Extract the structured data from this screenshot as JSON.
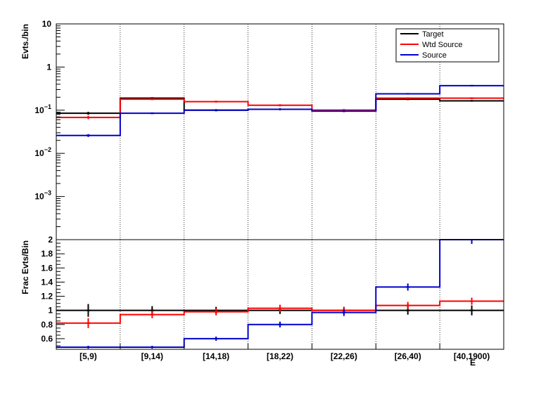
{
  "chart_data": [
    {
      "type": "step-histogram",
      "panel": "top",
      "ylabel": "Evts./bin",
      "yscale": "log",
      "ylim": [
        0.0001,
        10
      ],
      "yticks": [
        {
          "value": 10,
          "label": "10"
        },
        {
          "value": 1,
          "label": "1"
        },
        {
          "value": 0.1,
          "label": "10",
          "exp": "−1"
        },
        {
          "value": 0.01,
          "label": "10",
          "exp": "−2"
        },
        {
          "value": 0.001,
          "label": "10",
          "exp": "−3"
        }
      ],
      "categories": [
        "[5,9)",
        "[9,14)",
        "[14,18)",
        "[18,22)",
        "[22,26)",
        "[26,40)",
        "[40,1900)"
      ],
      "grid_x": true,
      "legend_position": "top-right",
      "series": [
        {
          "name": "Target",
          "color": "#000000",
          "values": [
            0.085,
            0.19,
            0.1,
            0.105,
            0.1,
            0.18,
            0.165
          ],
          "errors": [
            0.007,
            0.01,
            0.006,
            0.006,
            0.006,
            0.009,
            0.008
          ]
        },
        {
          "name": "Wtd Source",
          "color": "#ff0000",
          "values": [
            0.068,
            0.18,
            0.158,
            0.13,
            0.1,
            0.19,
            0.19
          ],
          "errors": [
            0.006,
            0.009,
            0.008,
            0.007,
            0.006,
            0.009,
            0.009
          ]
        },
        {
          "name": "Source",
          "color": "#0000cc",
          "values": [
            0.026,
            0.085,
            0.1,
            0.105,
            0.095,
            0.24,
            0.37
          ],
          "errors": [
            0.002,
            0.004,
            0.005,
            0.005,
            0.005,
            0.01,
            0.015
          ]
        }
      ]
    },
    {
      "type": "step-histogram",
      "panel": "bottom",
      "ylabel": "Frac Evts/Bin",
      "xlabel": "E",
      "ylim": [
        0.45,
        2.0
      ],
      "yticks": [
        {
          "value": 0.6,
          "label": "0.6"
        },
        {
          "value": 0.8,
          "label": "0.8"
        },
        {
          "value": 1.0,
          "label": "1"
        },
        {
          "value": 1.2,
          "label": "1.2"
        },
        {
          "value": 1.4,
          "label": "1.4"
        },
        {
          "value": 1.6,
          "label": "1.6"
        },
        {
          "value": 1.8,
          "label": "1.8"
        },
        {
          "value": 2.0,
          "label": "2"
        }
      ],
      "categories": [
        "[5,9)",
        "[9,14)",
        "[14,18)",
        "[18,22)",
        "[22,26)",
        "[26,40)",
        "[40,1900)"
      ],
      "grid_x": true,
      "series": [
        {
          "name": "Target",
          "color": "#000000",
          "values": [
            1,
            1,
            1,
            1,
            1,
            1,
            1
          ],
          "errors": [
            0.09,
            0.06,
            0.05,
            0.05,
            0.05,
            0.06,
            0.07
          ]
        },
        {
          "name": "Wtd Source",
          "color": "#ff0000",
          "values": [
            0.82,
            0.94,
            0.98,
            1.03,
            1.0,
            1.07,
            1.13
          ],
          "errors": [
            0.07,
            0.05,
            0.05,
            0.05,
            0.05,
            0.05,
            0.05
          ]
        },
        {
          "name": "Source",
          "color": "#0000cc",
          "values": [
            0.48,
            0.48,
            0.6,
            0.8,
            0.97,
            1.33,
            2.0
          ],
          "errors": [
            0.02,
            0.02,
            0.03,
            0.04,
            0.05,
            0.05,
            0.06
          ]
        }
      ]
    }
  ]
}
